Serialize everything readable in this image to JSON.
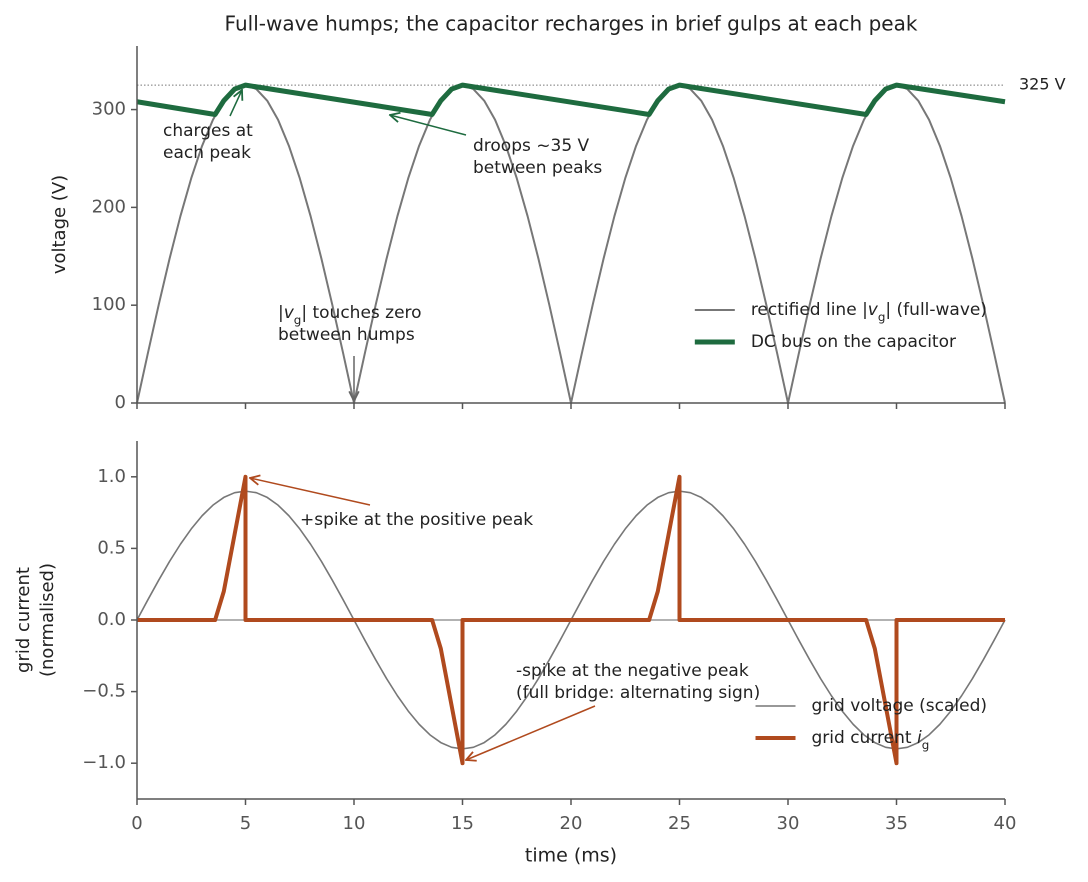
{
  "chart_data": [
    {
      "type": "line",
      "title": "Full-wave humps; the capacitor recharges in brief gulps at each peak",
      "ylabel": "voltage  (V)",
      "xlim": [
        0,
        40
      ],
      "xticks": [
        0,
        5,
        10,
        15,
        20,
        25,
        30,
        35,
        40
      ],
      "ylim": [
        0,
        365
      ],
      "yticks": [
        0,
        100,
        200,
        300
      ],
      "legend": "lower right",
      "ref_line": {
        "value": 325,
        "label": "325 V",
        "color": "#777777"
      },
      "series": [
        {
          "name": [
            {
              "text": "rectified line |"
            },
            {
              "text": "v",
              "style": "italic"
            },
            {
              "text": "g",
              "style": "sub"
            },
            {
              "text": "|  (full-wave)"
            }
          ],
          "color": "#777777",
          "width": 2,
          "x": [
            0,
            0.5,
            1,
            1.5,
            2,
            2.5,
            3,
            3.5,
            4,
            4.5,
            5,
            5.5,
            6,
            6.5,
            7,
            7.5,
            8,
            8.5,
            9,
            9.5,
            10,
            10.5,
            11,
            11.5,
            12,
            12.5,
            13,
            13.5,
            14,
            14.5,
            15,
            15.5,
            16,
            16.5,
            17,
            17.5,
            18,
            18.5,
            19,
            19.5,
            20,
            20.5,
            21,
            21.5,
            22,
            22.5,
            23,
            23.5,
            24,
            24.5,
            25,
            25.5,
            26,
            26.5,
            27,
            27.5,
            28,
            28.5,
            29,
            29.5,
            30,
            30.5,
            31,
            31.5,
            32,
            32.5,
            33,
            33.5,
            34,
            34.5,
            35,
            35.5,
            36,
            36.5,
            37,
            37.5,
            38,
            38.5,
            39,
            39.5,
            40
          ],
          "values": [
            0,
            50.8,
            100.4,
            147.5,
            191,
            229.8,
            262.9,
            289.6,
            309.1,
            321,
            325,
            321,
            309.1,
            289.6,
            262.9,
            229.8,
            191,
            147.5,
            100.4,
            50.8,
            0,
            50.8,
            100.4,
            147.5,
            191,
            229.8,
            262.9,
            289.6,
            309.1,
            321,
            325,
            321,
            309.1,
            289.6,
            262.9,
            229.8,
            191,
            147.5,
            100.4,
            50.8,
            0,
            50.8,
            100.4,
            147.5,
            191,
            229.8,
            262.9,
            289.6,
            309.1,
            321,
            325,
            321,
            309.1,
            289.6,
            262.9,
            229.8,
            191,
            147.5,
            100.4,
            50.8,
            0,
            50.8,
            100.4,
            147.5,
            191,
            229.8,
            262.9,
            289.6,
            309.1,
            321,
            325,
            321,
            309.1,
            289.6,
            262.9,
            229.8,
            191,
            147.5,
            100.4,
            50.8,
            0
          ]
        },
        {
          "name": [
            {
              "text": "DC bus on the capacitor"
            }
          ],
          "color": "#1e6b3f",
          "width": 5,
          "x": [
            0,
            3.6,
            4,
            4.5,
            5,
            13.6,
            14,
            14.5,
            15,
            23.6,
            24,
            24.5,
            25,
            33.6,
            34,
            34.5,
            35,
            40
          ],
          "values": [
            308,
            295,
            309.1,
            321,
            325,
            295,
            309.1,
            321,
            325,
            295,
            309.1,
            321,
            325,
            295,
            309.1,
            321,
            325,
            308
          ]
        }
      ],
      "annotations": [
        {
          "color": "#1e6b3f",
          "lines": [
            [
              {
                "text": "charges at"
              }
            ],
            [
              {
                "text": "each peak"
              }
            ]
          ]
        },
        {
          "color": "#1e6b3f",
          "lines": [
            [
              {
                "text": "droops ~35 V"
              }
            ],
            [
              {
                "text": "between peaks"
              }
            ]
          ]
        },
        {
          "color": "#666666",
          "lines": [
            [
              {
                "text": "|"
              },
              {
                "text": "v",
                "style": "italic"
              },
              {
                "text": "g",
                "style": "sub"
              },
              {
                "text": "| touches zero"
              }
            ],
            [
              {
                "text": "between humps"
              }
            ]
          ]
        }
      ]
    },
    {
      "type": "line",
      "xlabel": "time  (ms)",
      "ylabel": [
        "grid current",
        "(normalised)"
      ],
      "xlim": [
        0,
        40
      ],
      "xticks": [
        0,
        5,
        10,
        15,
        20,
        25,
        30,
        35,
        40
      ],
      "ylim": [
        -1.25,
        1.25
      ],
      "yticks": [
        {
          "value": 1,
          "label": "1.0"
        },
        {
          "value": 0.5,
          "label": "0.5"
        },
        {
          "value": 0,
          "label": "0.0"
        },
        {
          "value": -0.5,
          "label": "−0.5"
        },
        {
          "value": -1,
          "label": "−1.0"
        }
      ],
      "zero_line": true,
      "legend": "lower right",
      "series": [
        {
          "name": [
            {
              "text": "grid voltage (scaled)"
            }
          ],
          "color": "#777777",
          "width": 1.6,
          "x": [
            0,
            0.5,
            1,
            1.5,
            2,
            2.5,
            3,
            3.5,
            4,
            4.5,
            5,
            5.5,
            6,
            6.5,
            7,
            7.5,
            8,
            8.5,
            9,
            9.5,
            10,
            10.5,
            11,
            11.5,
            12,
            12.5,
            13,
            13.5,
            14,
            14.5,
            15,
            15.5,
            16,
            16.5,
            17,
            17.5,
            18,
            18.5,
            19,
            19.5,
            20,
            20.5,
            21,
            21.5,
            22,
            22.5,
            23,
            23.5,
            24,
            24.5,
            25,
            25.5,
            26,
            26.5,
            27,
            27.5,
            28,
            28.5,
            29,
            29.5,
            30,
            30.5,
            31,
            31.5,
            32,
            32.5,
            33,
            33.5,
            34,
            34.5,
            35,
            35.5,
            36,
            36.5,
            37,
            37.5,
            38,
            38.5,
            39,
            39.5,
            40
          ],
          "values": [
            0,
            0.141,
            0.278,
            0.409,
            0.529,
            0.636,
            0.728,
            0.802,
            0.856,
            0.889,
            0.9,
            0.889,
            0.856,
            0.802,
            0.728,
            0.636,
            0.529,
            0.409,
            0.278,
            0.141,
            0,
            -0.141,
            -0.278,
            -0.409,
            -0.529,
            -0.636,
            -0.728,
            -0.802,
            -0.856,
            -0.889,
            -0.9,
            -0.889,
            -0.856,
            -0.802,
            -0.728,
            -0.636,
            -0.529,
            -0.409,
            -0.278,
            -0.141,
            0,
            0.141,
            0.278,
            0.409,
            0.529,
            0.636,
            0.728,
            0.802,
            0.856,
            0.889,
            0.9,
            0.889,
            0.856,
            0.802,
            0.728,
            0.636,
            0.529,
            0.409,
            0.278,
            0.141,
            0,
            -0.141,
            -0.278,
            -0.409,
            -0.529,
            -0.636,
            -0.728,
            -0.802,
            -0.856,
            -0.889,
            -0.9,
            -0.889,
            -0.856,
            -0.802,
            -0.728,
            -0.636,
            -0.529,
            -0.409,
            -0.278,
            -0.141,
            0
          ]
        },
        {
          "name": [
            {
              "text": "grid current "
            },
            {
              "text": "i",
              "style": "italic"
            },
            {
              "text": "g",
              "style": "sub"
            }
          ],
          "color": "#b04a1e",
          "width": 4,
          "x": [
            0,
            3.6,
            4,
            4.5,
            5,
            5,
            13.6,
            14,
            14.5,
            15,
            15,
            23.6,
            24,
            24.5,
            25,
            25,
            33.6,
            34,
            34.5,
            35,
            35,
            40
          ],
          "values": [
            0,
            0,
            0.2,
            0.6,
            1,
            0,
            0,
            -0.2,
            -0.6,
            -1,
            0,
            0,
            0.2,
            0.6,
            1,
            0,
            0,
            -0.2,
            -0.6,
            -1,
            0,
            0
          ]
        }
      ],
      "annotations": [
        {
          "color": "#b04a1e",
          "lines": [
            [
              {
                "text": "+spike at the positive peak"
              }
            ]
          ]
        },
        {
          "color": "#b04a1e",
          "lines": [
            [
              {
                "text": "-spike at the negative peak"
              }
            ],
            [
              {
                "text": "(full bridge: alternating sign)"
              }
            ]
          ]
        }
      ]
    }
  ]
}
